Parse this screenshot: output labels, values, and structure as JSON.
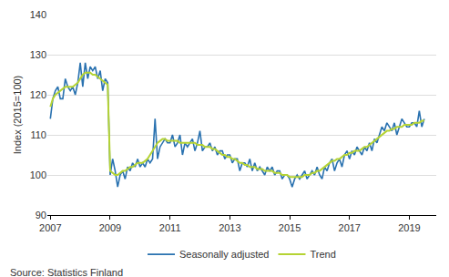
{
  "chart_data": {
    "type": "line",
    "y_label": "Index (2015=100)",
    "source": "Source: Statistics Finland",
    "x": [
      2007,
      2007.083,
      2007.167,
      2007.25,
      2007.333,
      2007.417,
      2007.5,
      2007.583,
      2007.667,
      2007.75,
      2007.833,
      2007.917,
      2008,
      2008.083,
      2008.167,
      2008.25,
      2008.333,
      2008.417,
      2008.5,
      2008.583,
      2008.667,
      2008.75,
      2008.833,
      2008.917,
      2009,
      2009.083,
      2009.167,
      2009.25,
      2009.333,
      2009.417,
      2009.5,
      2009.583,
      2009.667,
      2009.75,
      2009.833,
      2009.917,
      2010,
      2010.083,
      2010.167,
      2010.25,
      2010.333,
      2010.417,
      2010.5,
      2010.583,
      2010.667,
      2010.75,
      2010.833,
      2010.917,
      2011,
      2011.083,
      2011.167,
      2011.25,
      2011.333,
      2011.417,
      2011.5,
      2011.583,
      2011.667,
      2011.75,
      2011.833,
      2011.917,
      2012,
      2012.083,
      2012.167,
      2012.25,
      2012.333,
      2012.417,
      2012.5,
      2012.583,
      2012.667,
      2012.75,
      2012.833,
      2012.917,
      2013,
      2013.083,
      2013.167,
      2013.25,
      2013.333,
      2013.417,
      2013.5,
      2013.583,
      2013.667,
      2013.75,
      2013.833,
      2013.917,
      2014,
      2014.083,
      2014.167,
      2014.25,
      2014.333,
      2014.417,
      2014.5,
      2014.583,
      2014.667,
      2014.75,
      2014.833,
      2014.917,
      2015,
      2015.083,
      2015.167,
      2015.25,
      2015.333,
      2015.417,
      2015.5,
      2015.583,
      2015.667,
      2015.75,
      2015.833,
      2015.917,
      2016,
      2016.083,
      2016.167,
      2016.25,
      2016.333,
      2016.417,
      2016.5,
      2016.583,
      2016.667,
      2016.75,
      2016.833,
      2016.917,
      2017,
      2017.083,
      2017.167,
      2017.25,
      2017.333,
      2017.417,
      2017.5,
      2017.583,
      2017.667,
      2017.75,
      2017.833,
      2017.917,
      2018,
      2018.083,
      2018.167,
      2018.25,
      2018.333,
      2018.417,
      2018.5,
      2018.583,
      2018.667,
      2018.75,
      2018.833,
      2018.917,
      2019,
      2019.083,
      2019.167,
      2019.25,
      2019.333,
      2019.417,
      2019.5
    ],
    "series": [
      {
        "name": "Seasonally adjusted",
        "color": "#2a72b0",
        "values": [
          114,
          119,
          121,
          122,
          119,
          119,
          124,
          122,
          121,
          122,
          120,
          123,
          128,
          122,
          128,
          124,
          127,
          126,
          127,
          124,
          126,
          121,
          124,
          123,
          100,
          104,
          101,
          97,
          100,
          101,
          99,
          102,
          101,
          103,
          102,
          104,
          102,
          103,
          102,
          104,
          103,
          104,
          114,
          104,
          107,
          108,
          109,
          108,
          108,
          110,
          107,
          108,
          110,
          105,
          108,
          107,
          108,
          109,
          106,
          108,
          111,
          106,
          107,
          107,
          108,
          106,
          107,
          105,
          106,
          106,
          104,
          105,
          105,
          103,
          104,
          104,
          101,
          103,
          103,
          102,
          104,
          101,
          103,
          101,
          102,
          101,
          100,
          102,
          101,
          102,
          100,
          101,
          101,
          99,
          100,
          100,
          99,
          97,
          99,
          100,
          99,
          100,
          101,
          99,
          100,
          101,
          100,
          102,
          100,
          99,
          102,
          101,
          103,
          104,
          101,
          103,
          104,
          102,
          105,
          106,
          104,
          106,
          105,
          107,
          106,
          105,
          107,
          106,
          108,
          106,
          109,
          108,
          110,
          112,
          111,
          113,
          112,
          111,
          113,
          110,
          112,
          114,
          113,
          112,
          112,
          113,
          113,
          112,
          116,
          112,
          114
        ]
      },
      {
        "name": "Trend",
        "color": "#b5d334",
        "values": [
          117,
          119,
          120,
          120.5,
          121,
          121.5,
          122,
          122,
          122,
          122,
          122.5,
          123,
          124,
          125,
          125.5,
          125.5,
          125.5,
          125,
          125,
          124.5,
          124,
          123.5,
          123,
          122.5,
          101,
          100.5,
          100,
          100,
          100.5,
          101,
          101,
          101.5,
          102,
          102,
          102.5,
          103,
          103,
          103,
          103.5,
          104,
          105,
          106,
          107,
          108,
          108.5,
          109,
          109,
          108.5,
          108.5,
          108.5,
          108.5,
          108.5,
          108,
          108,
          108,
          108,
          108,
          108,
          108,
          107.5,
          107.5,
          107.5,
          107,
          107,
          107,
          106.5,
          106.5,
          106,
          105.5,
          105,
          105,
          104.5,
          104.5,
          104,
          104,
          103.5,
          103,
          103,
          102.5,
          102.5,
          102,
          102,
          102,
          101.5,
          101.5,
          101.5,
          101,
          101,
          101,
          101,
          100.5,
          100.5,
          100.5,
          100,
          100,
          100,
          99.5,
          99.5,
          99.5,
          99.5,
          99.5,
          99.5,
          100,
          100,
          100,
          100.5,
          100.5,
          101,
          101,
          101.5,
          102,
          102.5,
          103,
          103.5,
          103.5,
          104,
          104,
          104.5,
          105,
          105,
          105.5,
          105.5,
          106,
          106,
          106,
          106.5,
          107,
          107,
          107.5,
          108,
          108.5,
          109,
          109.5,
          110,
          110.5,
          111,
          111,
          111.5,
          111.5,
          112,
          112,
          112,
          112.5,
          112.5,
          112.5,
          112.5,
          113,
          113,
          113,
          113.5,
          113.5
        ]
      }
    ],
    "xlim": [
      2006.9,
      2019.9
    ],
    "xticks": [
      2007,
      2009,
      2011,
      2013,
      2015,
      2017,
      2019
    ],
    "ylim": [
      90,
      140
    ],
    "yticks": [
      90,
      100,
      110,
      120,
      130,
      140
    ],
    "grid": true,
    "legend": "bottom"
  }
}
